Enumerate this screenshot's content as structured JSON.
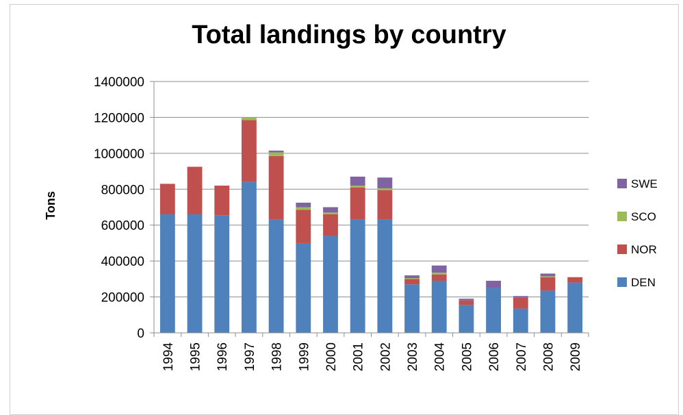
{
  "chart_data": {
    "type": "bar",
    "stacked": true,
    "title": "Total landings by country",
    "xlabel": "",
    "ylabel": "Tons",
    "ylim": [
      0,
      1400000
    ],
    "yticks": [
      0,
      200000,
      400000,
      600000,
      800000,
      1000000,
      1200000,
      1400000
    ],
    "ytick_labels": [
      "0",
      "200000",
      "400000",
      "600000",
      "800000",
      "1000000",
      "1200000",
      "1400000"
    ],
    "grid": true,
    "legend_position": "right",
    "categories": [
      "1994",
      "1995",
      "1996",
      "1997",
      "1998",
      "1999",
      "2000",
      "2001",
      "2002",
      "2003",
      "2004",
      "2005",
      "2006",
      "2007",
      "2008",
      "2009"
    ],
    "series": [
      {
        "name": "DEN",
        "color": "#4f81bd",
        "values": [
          660000,
          660000,
          655000,
          840000,
          630000,
          500000,
          540000,
          630000,
          630000,
          270000,
          290000,
          155000,
          250000,
          135000,
          235000,
          280000
        ]
      },
      {
        "name": "NOR",
        "color": "#c0504d",
        "values": [
          170000,
          265000,
          165000,
          345000,
          355000,
          185000,
          120000,
          180000,
          165000,
          30000,
          35000,
          25000,
          0,
          60000,
          75000,
          30000
        ]
      },
      {
        "name": "SCO",
        "color": "#9bbb59",
        "values": [
          0,
          0,
          0,
          15000,
          20000,
          15000,
          10000,
          10000,
          10000,
          5000,
          10000,
          0,
          0,
          0,
          5000,
          0
        ]
      },
      {
        "name": "SWE",
        "color": "#8064a2",
        "values": [
          0,
          0,
          0,
          0,
          10000,
          25000,
          30000,
          50000,
          60000,
          15000,
          40000,
          10000,
          40000,
          10000,
          15000,
          0
        ]
      }
    ]
  }
}
